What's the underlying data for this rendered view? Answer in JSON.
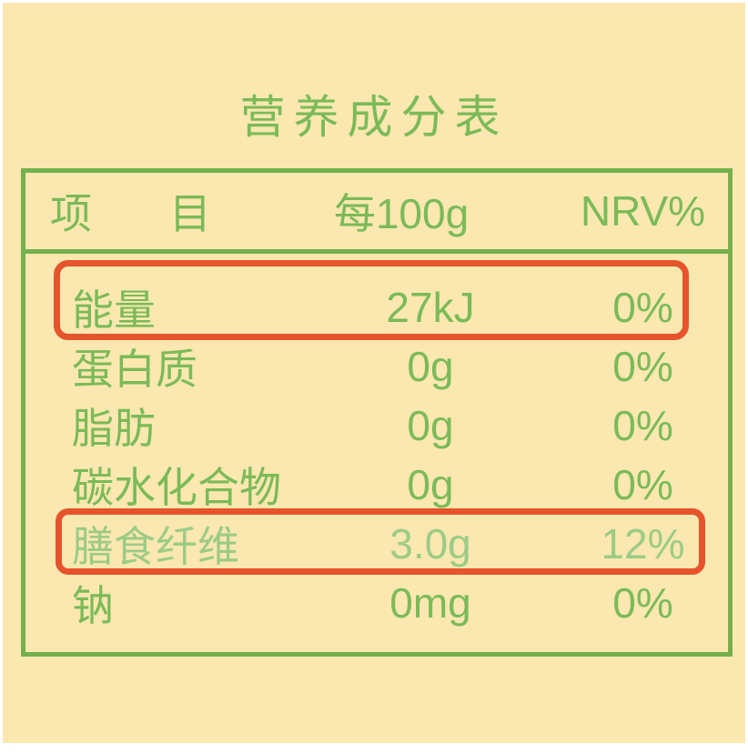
{
  "title": "营养成分表",
  "colors": {
    "label_background": "#FAE8B0",
    "green_border": "#74B04E",
    "green_text": "#7BBA58",
    "green_text_muted": "#9CCB86",
    "highlight_red": "#E5542C"
  },
  "table": {
    "header": {
      "item_char_1": "项",
      "item_char_2": "目",
      "per_100g": "每100g",
      "nrv": "NRV%"
    },
    "rows": [
      {
        "name": "能量",
        "per_100g": "27kJ",
        "nrv": "0%"
      },
      {
        "name": "蛋白质",
        "per_100g": "0g",
        "nrv": "0%"
      },
      {
        "name": "脂肪",
        "per_100g": "0g",
        "nrv": "0%"
      },
      {
        "name": "碳水化合物",
        "per_100g": "0g",
        "nrv": "0%"
      },
      {
        "name": "膳食纤维",
        "per_100g": "3.0g",
        "nrv": "12%"
      },
      {
        "name": "钠",
        "per_100g": "0mg",
        "nrv": "0%"
      }
    ]
  }
}
